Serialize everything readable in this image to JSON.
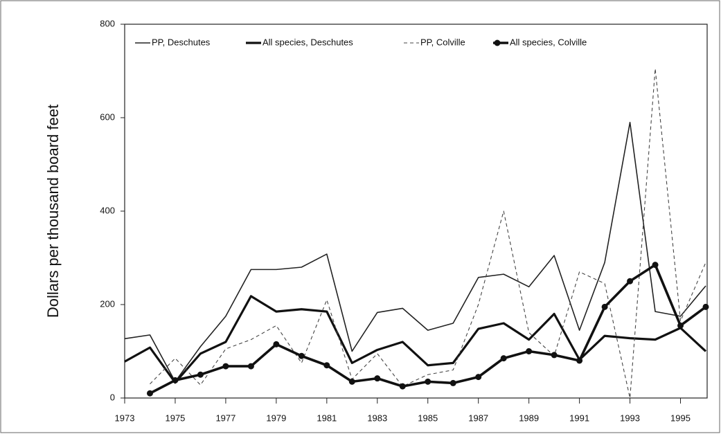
{
  "chart_data": {
    "type": "line",
    "y_label": "Dollars per thousand board feet",
    "x": [
      1973,
      1974,
      1975,
      1976,
      1977,
      1978,
      1979,
      1980,
      1981,
      1982,
      1983,
      1984,
      1985,
      1986,
      1987,
      1988,
      1989,
      1990,
      1991,
      1992,
      1993,
      1994,
      1995,
      1996
    ],
    "series": [
      {
        "name": "PP, Deschutes",
        "color": "#222222",
        "line_width": 1.6,
        "dash": "solid",
        "marker": "none",
        "values": [
          127,
          135,
          35,
          110,
          175,
          275,
          275,
          280,
          308,
          100,
          183,
          192,
          145,
          160,
          258,
          265,
          238,
          305,
          145,
          290,
          590,
          185,
          175,
          240
        ]
      },
      {
        "name": "All species, Deschutes",
        "color": "#111111",
        "line_width": 3.2,
        "dash": "solid",
        "marker": "none",
        "values": [
          78,
          108,
          33,
          95,
          120,
          218,
          185,
          190,
          185,
          75,
          103,
          120,
          70,
          75,
          148,
          160,
          125,
          180,
          82,
          133,
          128,
          125,
          150,
          100
        ]
      },
      {
        "name": "PP, Colville",
        "color": "#444444",
        "line_width": 1.1,
        "dash": "dashed",
        "marker": "none",
        "values": [
          null,
          30,
          85,
          28,
          105,
          125,
          155,
          75,
          210,
          40,
          95,
          25,
          50,
          60,
          200,
          400,
          140,
          90,
          270,
          245,
          0,
          705,
          165,
          290
        ]
      },
      {
        "name": "All species, Colville",
        "color": "#111111",
        "line_width": 3.6,
        "dash": "solid",
        "marker": "circle",
        "values": [
          null,
          10,
          38,
          50,
          68,
          68,
          115,
          90,
          70,
          35,
          42,
          25,
          35,
          32,
          45,
          85,
          100,
          92,
          80,
          195,
          250,
          285,
          155,
          195
        ]
      }
    ],
    "xlim": [
      1973,
      1996
    ],
    "xticks": [
      1973,
      1975,
      1977,
      1979,
      1981,
      1983,
      1985,
      1987,
      1989,
      1991,
      1993,
      1995
    ],
    "ylim": [
      0,
      800
    ],
    "yticks": [
      0,
      200,
      400,
      600,
      800
    ],
    "grid": false,
    "legend": "top"
  }
}
